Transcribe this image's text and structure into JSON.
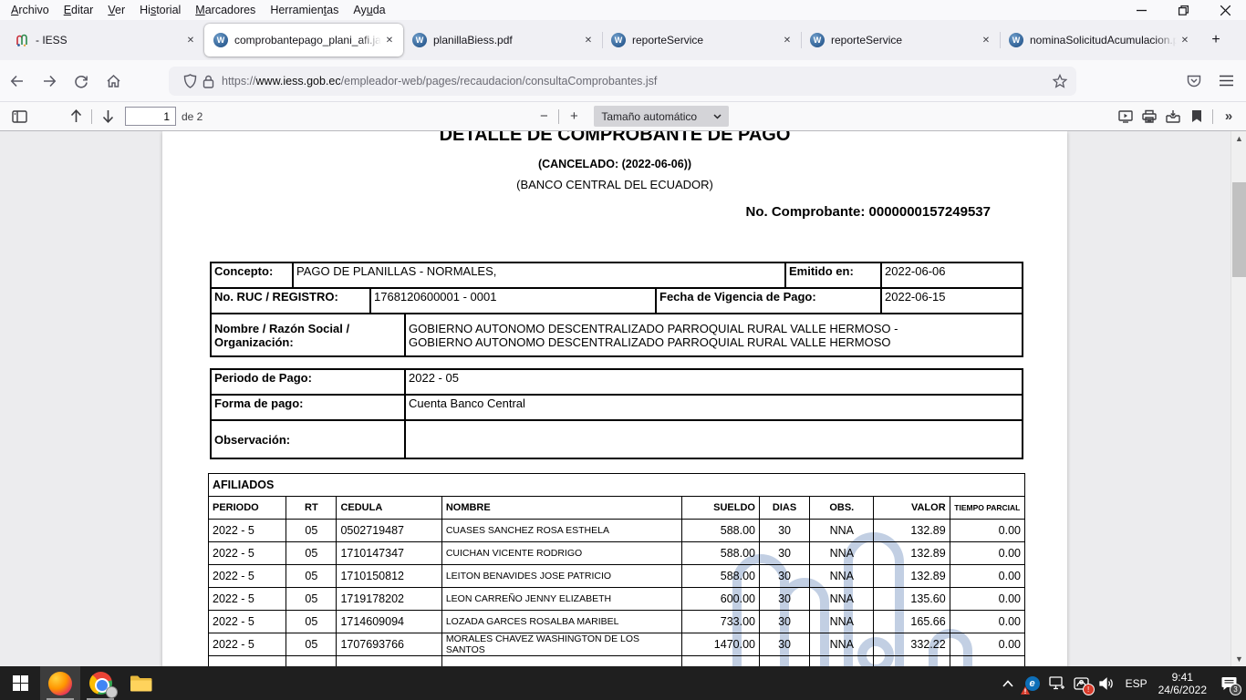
{
  "colors": {
    "taskbar_bg": "#1f1f1f",
    "favicon_blue": "#2d5d92",
    "watermark_blue": "#b3c4dd",
    "toolbar_bg": "#f9f9fa",
    "viewer_bg": "#ececee"
  },
  "menubar": {
    "items": [
      {
        "pre": "",
        "key": "A",
        "post": "rchivo"
      },
      {
        "pre": "",
        "key": "E",
        "post": "ditar"
      },
      {
        "pre": "",
        "key": "V",
        "post": "er"
      },
      {
        "pre": "Hi",
        "key": "s",
        "post": "torial"
      },
      {
        "pre": "",
        "key": "M",
        "post": "arcadores"
      },
      {
        "pre": "Herramien",
        "key": "t",
        "post": "as"
      },
      {
        "pre": "Ay",
        "key": "u",
        "post": "da"
      }
    ]
  },
  "tabs": [
    {
      "title": " - IESS",
      "icon": "iess",
      "active": false,
      "sep": false
    },
    {
      "title": "comprobantepago_plani_afi.jas",
      "icon": "w",
      "active": true,
      "sep": false
    },
    {
      "title": "planillaBiess.pdf",
      "icon": "w",
      "active": false,
      "sep": false
    },
    {
      "title": "reporteService",
      "icon": "w",
      "active": false,
      "sep": true
    },
    {
      "title": "reporteService",
      "icon": "w",
      "active": false,
      "sep": true
    },
    {
      "title": "nominaSolicitudAcumulacion.p",
      "icon": "w",
      "active": false,
      "sep": true
    }
  ],
  "new_tab_label": "+",
  "navbar": {
    "url_scheme": "https://",
    "url_domain": "www.iess.gob.ec",
    "url_path": "/empleador-web/pages/recaudacion/consultaComprobantes.jsf"
  },
  "pdf_toolbar": {
    "page_value": "1",
    "page_total_label": "de 2",
    "zoom_out_label": "−",
    "zoom_in_label": "+",
    "zoom_select_label": "Tamaño automático",
    "more_tools_label": "»"
  },
  "document": {
    "title": "DETALLE DE COMPROBANTE DE PAGO",
    "cancelado": "(CANCELADO: (2022-06-06))",
    "banco": "(BANCO CENTRAL DEL ECUADOR)",
    "comprobante": "No. Comprobante: 0000000157249537",
    "info": {
      "concepto_label": "Concepto:",
      "concepto_value": "PAGO DE PLANILLAS - NORMALES,",
      "emitido_label": "Emitido en:",
      "emitido_value": "2022-06-06",
      "ruc_label": "No. RUC / REGISTRO:",
      "ruc_value": "1768120600001 - 0001",
      "vigencia_label": "Fecha de Vigencia de Pago:",
      "vigencia_value": "2022-06-15",
      "nombre_label": "Nombre / Razón Social / Organización:",
      "nombre_line1": "GOBIERNO AUTONOMO DESCENTRALIZADO PARROQUIAL RURAL VALLE HERMOSO -",
      "nombre_line2": "GOBIERNO AUTONOMO DESCENTRALIZADO PARROQUIAL RURAL VALLE HERMOSO"
    },
    "pago": {
      "periodo_label": "Periodo de Pago:",
      "periodo_value": "2022 - 05",
      "forma_label": "Forma de pago:",
      "forma_value": "Cuenta Banco Central",
      "observacion_label": "Observación:",
      "observacion_value": ""
    },
    "afiliados": {
      "section_title": "AFILIADOS",
      "columns": [
        "PERIODO",
        "RT",
        "CEDULA",
        "NOMBRE",
        "SUELDO",
        "DIAS",
        "OBS.",
        "VALOR",
        "TIEMPO PARCIAL"
      ],
      "rows": [
        [
          "2022 - 5",
          "05",
          "0502719487",
          "CUASES SANCHEZ ROSA ESTHELA",
          "588.00",
          "30",
          "NNA",
          "132.89",
          "0.00"
        ],
        [
          "2022 - 5",
          "05",
          "1710147347",
          "CUICHAN VICENTE RODRIGO",
          "588.00",
          "30",
          "NNA",
          "132.89",
          "0.00"
        ],
        [
          "2022 - 5",
          "05",
          "1710150812",
          "LEITON BENAVIDES JOSE PATRICIO",
          "588.00",
          "30",
          "NNA",
          "132.89",
          "0.00"
        ],
        [
          "2022 - 5",
          "05",
          "1719178202",
          "LEON CARREÑO JENNY ELIZABETH",
          "600.00",
          "30",
          "NNA",
          "135.60",
          "0.00"
        ],
        [
          "2022 - 5",
          "05",
          "1714609094",
          "LOZADA GARCES ROSALBA MARIBEL",
          "733.00",
          "30",
          "NNA",
          "165.66",
          "0.00"
        ],
        [
          "2022 - 5",
          "05",
          "1707693766",
          "MORALES CHAVEZ WASHINGTON DE LOS SANTOS",
          "1470.00",
          "30",
          "NNA",
          "332.22",
          "0.00"
        ]
      ],
      "partial_row": [
        "",
        "",
        "",
        "",
        "",
        "",
        "",
        "",
        ""
      ]
    }
  },
  "taskbar": {
    "language": "ESP",
    "time": "9:41",
    "date": "24/6/2022",
    "notification_count": "3"
  }
}
